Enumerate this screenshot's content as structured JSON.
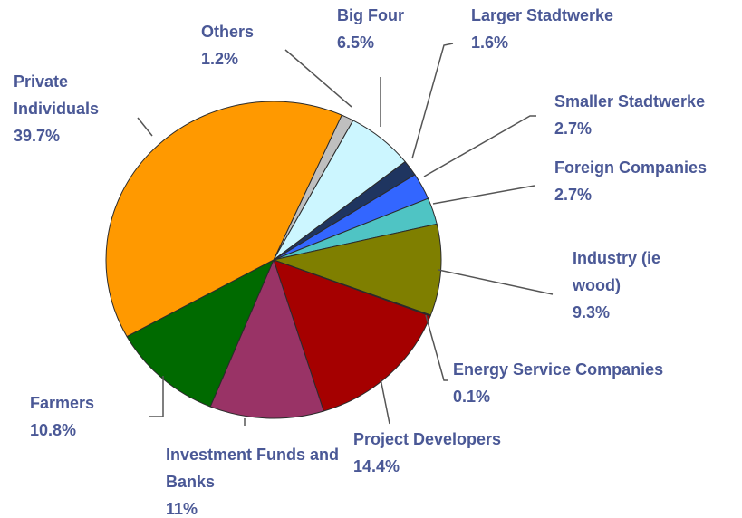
{
  "chart_data": {
    "type": "pie",
    "categories": [
      "Others",
      "Big Four",
      "Larger Stadtwerke",
      "Smaller Stadtwerke",
      "Foreign Companies",
      "Industry (ie wood)",
      "Energy Service Companies",
      "Project Developers",
      "Investment Funds and Banks",
      "Farmers",
      "Private Individuals"
    ],
    "values": [
      1.2,
      6.5,
      1.6,
      2.7,
      2.7,
      9.3,
      0.1,
      14.4,
      11,
      10.8,
      39.7
    ],
    "value_labels": [
      "1.2%",
      "6.5%",
      "1.6%",
      "2.7%",
      "2.7%",
      "9.3%",
      "0.1%",
      "14.4%",
      "11%",
      "10.8%",
      "39.7%"
    ],
    "colors": [
      "#bfbfbf",
      "#ccf6ff",
      "#1f3560",
      "#3366ff",
      "#4fc4c4",
      "#7f7f00",
      "#5a5a5a",
      "#a50000",
      "#993366",
      "#006a00",
      "#ff9900"
    ]
  }
}
